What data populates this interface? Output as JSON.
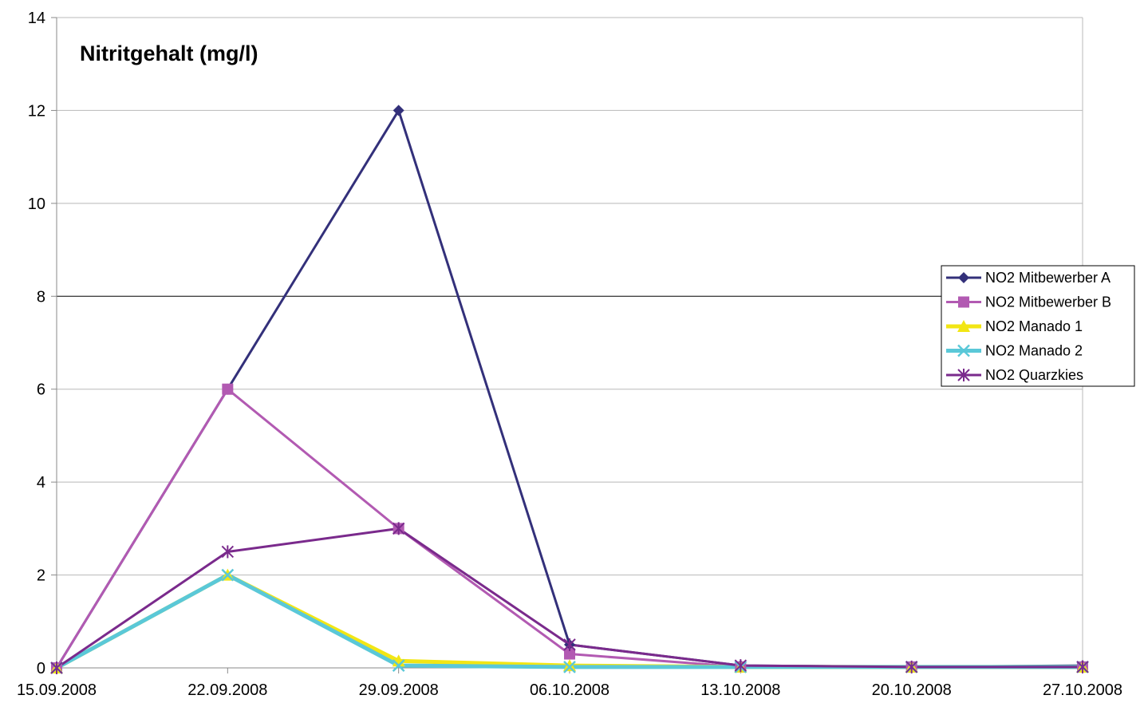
{
  "chart_data": {
    "type": "line",
    "title": "Nitritgehalt (mg/l)",
    "xlabel": "",
    "ylabel": "",
    "categories": [
      "15.09.2008",
      "22.09.2008",
      "29.09.2008",
      "06.10.2008",
      "13.10.2008",
      "20.10.2008",
      "27.10.2008"
    ],
    "ylim": [
      0,
      14
    ],
    "yticks": [
      "0",
      "2",
      "4",
      "6",
      "8",
      "10",
      "12",
      "14"
    ],
    "grid": true,
    "legend_position": "right",
    "series": [
      {
        "name": "NO2 Mitbewerber A",
        "color": "#33307a",
        "marker": "diamond",
        "values": [
          0,
          6,
          12,
          0.5,
          0.05,
          0.02,
          0.05
        ]
      },
      {
        "name": "NO2 Mitbewerber B",
        "color": "#b25ab2",
        "marker": "square",
        "values": [
          0,
          6,
          3,
          0.3,
          0.02,
          0.02,
          0.02
        ]
      },
      {
        "name": "NO2 Manado 1",
        "color": "#f2e614",
        "marker": "triangle",
        "values": [
          0,
          2,
          0.15,
          0.05,
          0.02,
          0.02,
          0.02
        ]
      },
      {
        "name": "NO2 Manado 2",
        "color": "#5ac8d8",
        "marker": "x",
        "values": [
          0,
          2,
          0.05,
          0.02,
          0.02,
          0.02,
          0.02
        ]
      },
      {
        "name": "NO2 Quarzkies",
        "color": "#7a2a8c",
        "marker": "star",
        "values": [
          0,
          2.5,
          3,
          0.5,
          0.05,
          0.02,
          0.02
        ]
      }
    ]
  }
}
